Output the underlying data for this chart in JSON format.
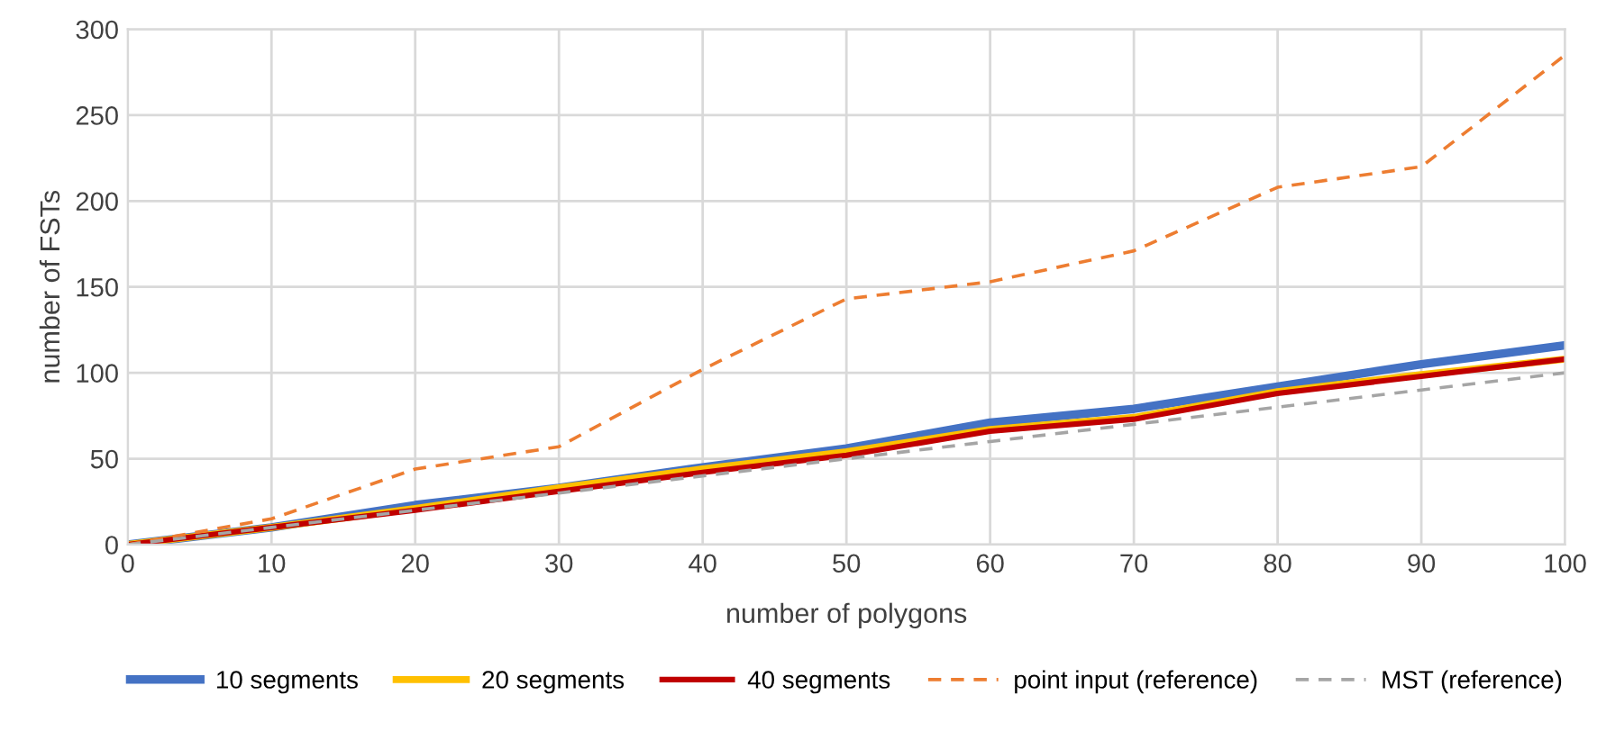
{
  "chart_data": {
    "type": "line",
    "xlabel": "number of polygons",
    "ylabel": "number of FSTs",
    "x": [
      0,
      10,
      20,
      30,
      40,
      50,
      60,
      70,
      80,
      90,
      100
    ],
    "series": [
      {
        "name": "10 segments",
        "color": "#4472c4",
        "line_style": "solid",
        "values": [
          0,
          10,
          23,
          33,
          45,
          56,
          71,
          79,
          92,
          105,
          116
        ]
      },
      {
        "name": "20 segments",
        "color": "#ffc000",
        "line_style": "solid",
        "values": [
          0,
          10,
          21,
          33,
          44,
          54,
          67,
          74,
          89,
          99,
          108
        ]
      },
      {
        "name": "40 segments",
        "color": "#c00000",
        "line_style": "solid",
        "values": [
          0,
          10,
          20,
          31,
          42,
          52,
          66,
          73,
          88,
          98,
          108
        ]
      },
      {
        "name": "point input (reference)",
        "color": "#ed7d31",
        "line_style": "dashed",
        "values": [
          0,
          15,
          44,
          57,
          102,
          143,
          153,
          171,
          208,
          220,
          285
        ]
      },
      {
        "name": "MST (reference)",
        "color": "#a5a5a5",
        "line_style": "dashed",
        "values": [
          0,
          10,
          20,
          30,
          40,
          50,
          60,
          70,
          80,
          90,
          100
        ]
      }
    ],
    "xlim": [
      0,
      100
    ],
    "xticks": [
      0,
      10,
      20,
      30,
      40,
      50,
      60,
      70,
      80,
      90,
      100
    ],
    "ylim": [
      0,
      300
    ],
    "yticks": [
      0,
      50,
      100,
      150,
      200,
      250,
      300
    ],
    "grid": true,
    "legend": "bottom",
    "marker": "none"
  }
}
